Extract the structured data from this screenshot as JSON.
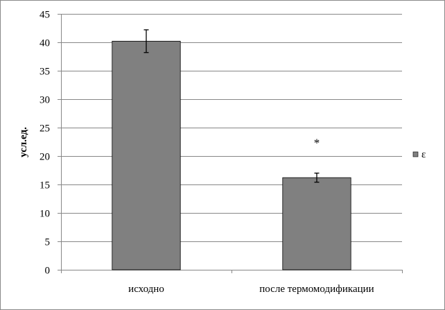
{
  "chart_data": {
    "type": "bar",
    "categories": [
      "исходно",
      "после термомодификации"
    ],
    "series": [
      {
        "name": "ε",
        "values": [
          40.2,
          16.2
        ],
        "errors": [
          2.0,
          0.8
        ],
        "color": "#808080"
      }
    ],
    "xlabel": "",
    "ylabel": "усл.ед.",
    "ylim": [
      0,
      45
    ],
    "yticks": [
      0,
      5,
      10,
      15,
      20,
      25,
      30,
      35,
      40,
      45
    ],
    "grid": true,
    "legend": "right",
    "annotations": [
      {
        "category_index": 1,
        "text": "*"
      }
    ]
  }
}
